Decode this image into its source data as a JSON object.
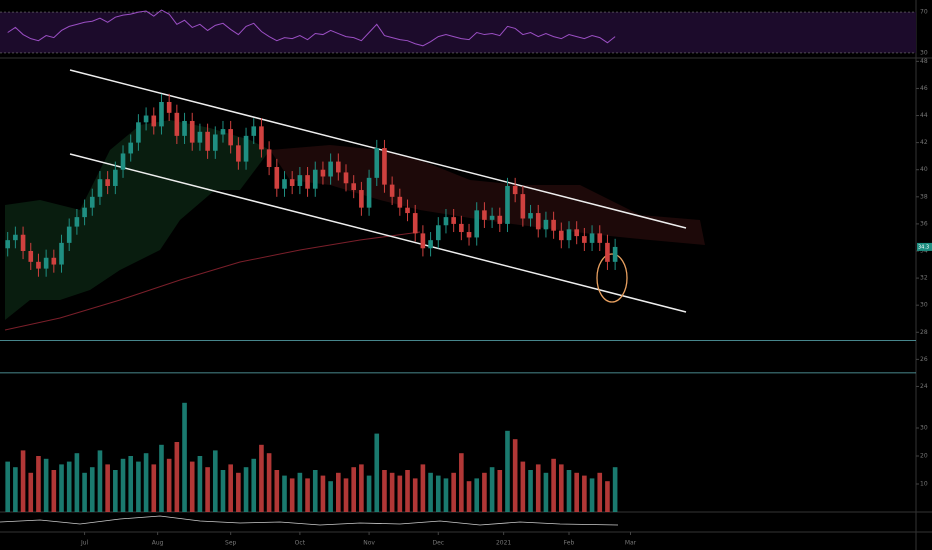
{
  "chart_data": [
    {
      "type": "candlestick",
      "open": [
        34.2,
        34.8,
        35.2,
        34.0,
        33.2,
        32.7,
        33.5,
        33.0,
        34.6,
        35.8,
        36.5,
        37.2,
        38.0,
        39.3,
        38.8,
        40.0,
        41.2,
        42.0,
        43.5,
        44.0,
        43.2,
        45.0,
        44.2,
        42.5,
        43.6,
        42.0,
        42.8,
        41.4,
        42.6,
        43.0,
        41.8,
        40.6,
        42.5,
        43.2,
        41.5,
        40.2,
        38.6,
        39.3,
        38.8,
        39.6,
        38.6,
        40.0,
        39.5,
        40.6,
        39.8,
        39.0,
        38.5,
        37.2,
        39.4,
        41.6,
        38.9,
        38.0,
        37.2,
        36.8,
        35.3,
        34.2,
        34.8,
        35.9,
        36.5,
        36.0,
        35.4,
        35.0,
        37.0,
        36.3,
        36.6,
        36.0,
        38.8,
        38.2,
        36.4,
        36.8,
        35.6,
        36.3,
        35.5,
        34.8,
        35.6,
        35.1,
        34.6,
        35.3,
        34.6,
        33.2
      ],
      "high": [
        35.4,
        35.8,
        35.8,
        34.6,
        33.8,
        34.1,
        34.1,
        35.2,
        36.4,
        37.1,
        37.8,
        38.6,
        39.9,
        39.9,
        40.6,
        41.8,
        42.6,
        44.1,
        44.6,
        44.6,
        45.6,
        45.6,
        44.8,
        44.2,
        44.2,
        43.4,
        43.4,
        43.2,
        43.6,
        43.6,
        42.4,
        43.1,
        43.8,
        43.8,
        42.1,
        40.8,
        39.9,
        39.9,
        40.2,
        40.2,
        40.6,
        40.6,
        41.2,
        41.2,
        40.4,
        39.6,
        39.1,
        40.0,
        42.2,
        42.2,
        39.5,
        38.6,
        37.8,
        37.4,
        35.9,
        35.4,
        36.5,
        37.1,
        37.1,
        36.6,
        36.0,
        37.6,
        37.6,
        37.2,
        37.2,
        39.4,
        39.4,
        38.8,
        37.4,
        37.4,
        36.9,
        36.9,
        36.1,
        36.2,
        36.2,
        35.7,
        35.9,
        35.9,
        35.2,
        34.9
      ],
      "low": [
        33.6,
        34.2,
        33.4,
        32.6,
        32.1,
        32.1,
        32.4,
        32.4,
        34.0,
        35.2,
        35.9,
        36.6,
        37.4,
        38.2,
        38.2,
        39.4,
        40.6,
        41.4,
        42.9,
        42.6,
        42.6,
        43.6,
        41.9,
        41.9,
        41.4,
        41.4,
        40.8,
        40.8,
        42.0,
        41.2,
        40.0,
        40.0,
        41.9,
        40.9,
        39.6,
        38.0,
        38.0,
        38.2,
        38.2,
        38.0,
        38.0,
        38.9,
        38.9,
        39.2,
        38.4,
        37.9,
        36.6,
        36.6,
        38.8,
        38.3,
        37.4,
        36.6,
        36.2,
        34.7,
        33.6,
        33.6,
        34.2,
        35.3,
        35.4,
        34.8,
        34.4,
        34.4,
        35.7,
        35.7,
        35.4,
        35.4,
        37.6,
        35.8,
        35.8,
        35.0,
        35.0,
        34.9,
        34.2,
        34.2,
        34.5,
        34.0,
        34.0,
        34.0,
        32.6,
        32.6
      ],
      "close": [
        34.8,
        35.2,
        34.0,
        33.2,
        32.7,
        33.5,
        33.0,
        34.6,
        35.8,
        36.5,
        37.2,
        38.0,
        39.3,
        38.8,
        40.0,
        41.2,
        42.0,
        43.5,
        44.0,
        43.2,
        45.0,
        44.2,
        42.5,
        43.6,
        42.0,
        42.8,
        41.4,
        42.6,
        43.0,
        41.8,
        40.6,
        42.5,
        43.2,
        41.5,
        40.2,
        38.6,
        39.3,
        38.8,
        39.6,
        38.6,
        40.0,
        39.5,
        40.6,
        39.8,
        39.0,
        38.5,
        37.2,
        39.4,
        41.6,
        38.9,
        38.0,
        37.2,
        36.8,
        35.3,
        34.2,
        34.8,
        35.9,
        36.5,
        36.0,
        35.4,
        35.0,
        37.0,
        36.3,
        36.6,
        36.0,
        38.8,
        38.2,
        36.4,
        36.8,
        35.6,
        36.3,
        35.5,
        34.8,
        35.6,
        35.1,
        34.6,
        35.3,
        34.6,
        33.2,
        34.3
      ],
      "up_color": "#1f8f82",
      "down_color": "#d0413f",
      "ylim": [
        23,
        48.1
      ],
      "yticks": [
        24,
        26,
        28,
        30,
        32,
        34,
        36,
        38,
        40,
        42,
        44,
        46,
        48
      ],
      "xlim": [
        -1,
        118
      ],
      "xticks": [
        {
          "value": 10,
          "label": "Jul"
        },
        {
          "value": 19.5,
          "label": "Aug"
        },
        {
          "value": 29,
          "label": "Sep"
        },
        {
          "value": 38,
          "label": "Oct"
        },
        {
          "value": 47,
          "label": "Nov"
        },
        {
          "value": 56,
          "label": "Dec"
        },
        {
          "value": 64.5,
          "label": "2021"
        },
        {
          "value": 73,
          "label": "Feb"
        },
        {
          "value": 81,
          "label": "Mar"
        }
      ],
      "levels": [
        27.4,
        25.0
      ],
      "level_color": "#5fb3ba"
    },
    {
      "type": "bar",
      "values": [
        18,
        16,
        22,
        14,
        20,
        19,
        15,
        17,
        18,
        21,
        14,
        16,
        22,
        17,
        15,
        19,
        20,
        18,
        21,
        17,
        24,
        19,
        25,
        39,
        18,
        20,
        16,
        22,
        15,
        17,
        14,
        16,
        19,
        24,
        21,
        15,
        13,
        12,
        14,
        12,
        15,
        13,
        11,
        14,
        12,
        16,
        17,
        13,
        28,
        15,
        14,
        13,
        15,
        12,
        17,
        14,
        13,
        12,
        14,
        21,
        11,
        12,
        14,
        16,
        15,
        29,
        26,
        18,
        15,
        17,
        14,
        19,
        17,
        15,
        14,
        13,
        12,
        14,
        11,
        16
      ],
      "ylim": [
        0,
        40
      ],
      "yticks": [
        10,
        20,
        30
      ]
    },
    {
      "type": "line",
      "values": [
        50,
        55,
        48,
        44,
        42,
        47,
        45,
        52,
        56,
        58,
        60,
        61,
        64,
        60,
        65,
        67,
        68,
        70,
        71,
        66,
        72,
        68,
        58,
        62,
        55,
        58,
        52,
        57,
        59,
        53,
        48,
        56,
        59,
        51,
        46,
        42,
        45,
        44,
        47,
        43,
        49,
        48,
        52,
        49,
        46,
        45,
        42,
        50,
        58,
        47,
        45,
        43,
        42,
        39,
        37,
        41,
        46,
        48,
        46,
        44,
        43,
        50,
        48,
        49,
        47,
        56,
        54,
        48,
        50,
        46,
        49,
        46,
        44,
        48,
        46,
        44,
        47,
        45,
        40,
        46
      ],
      "color": "#9b4fc4",
      "ylim": [
        27,
        74
      ],
      "yticks": [
        30,
        70
      ]
    }
  ]
}
